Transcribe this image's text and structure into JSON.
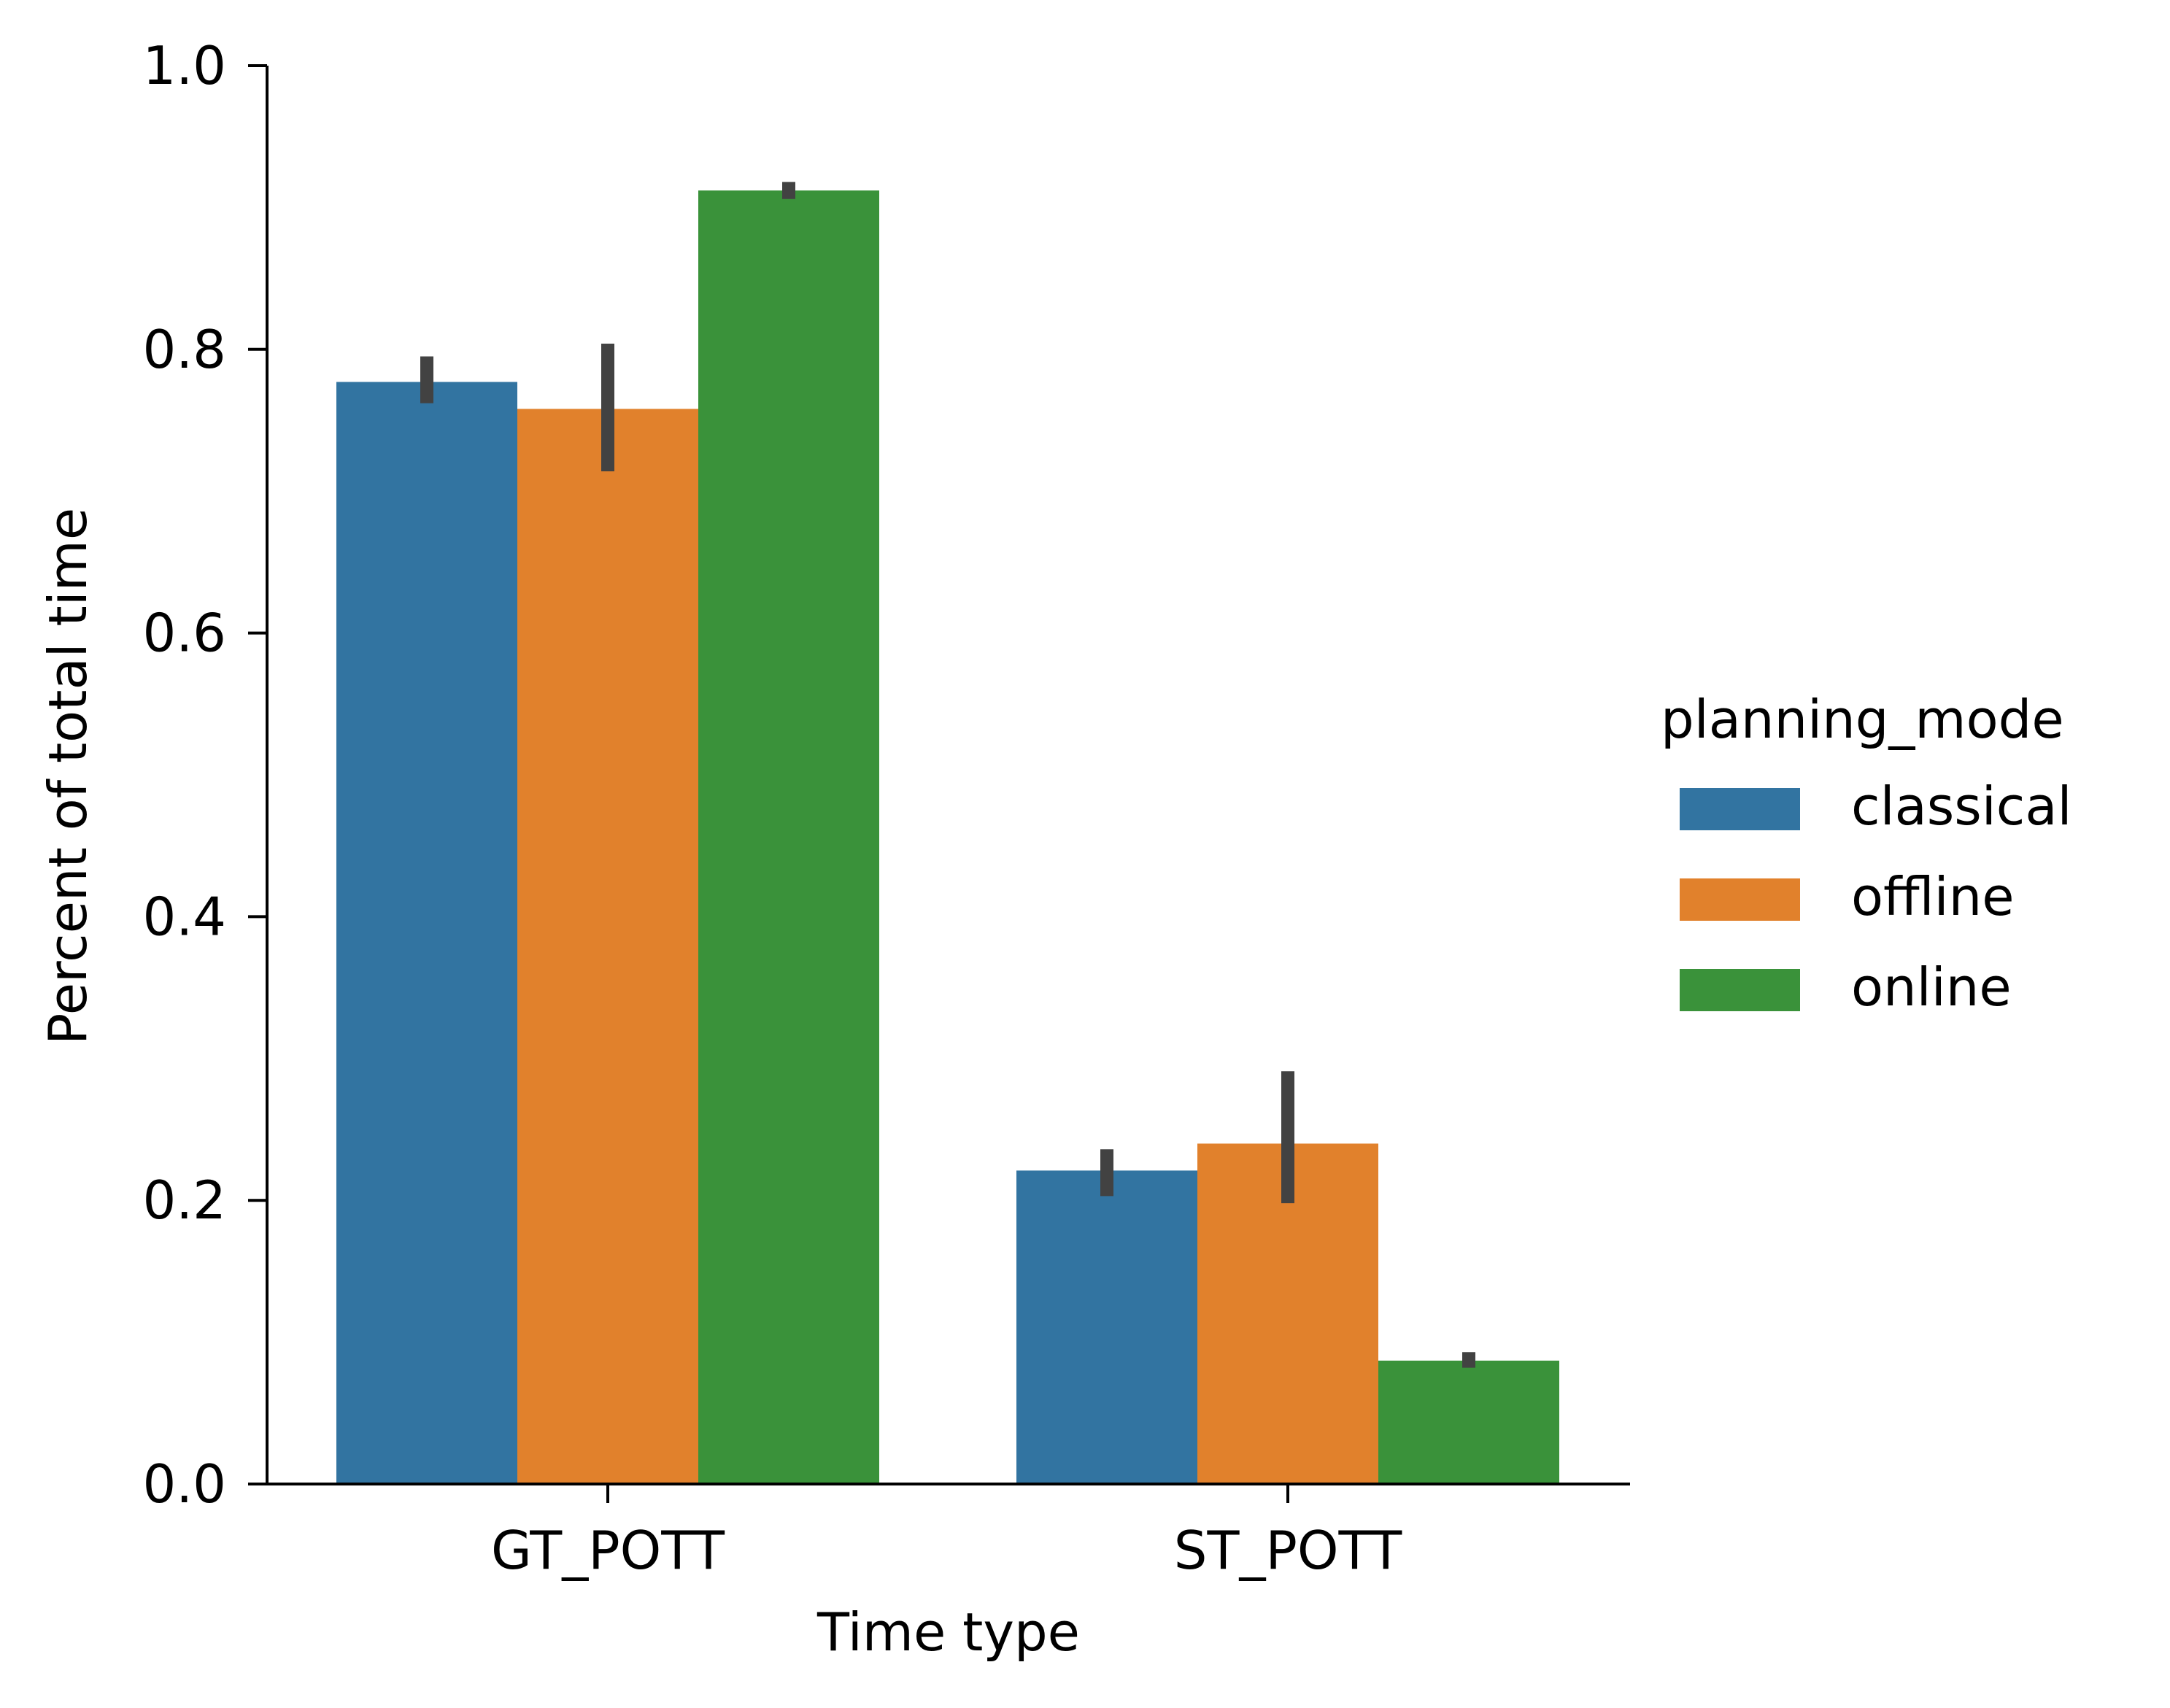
{
  "chart_data": {
    "type": "bar",
    "title": "",
    "xlabel": "Time type",
    "ylabel": "Percent of total time",
    "categories": [
      "GT_POTT",
      "ST_POTT"
    ],
    "ylim": [
      0,
      1.0
    ],
    "yticks": [
      "0.0",
      "0.2",
      "0.4",
      "0.6",
      "0.8",
      "1.0"
    ],
    "grid": false,
    "legend": {
      "title": "planning_mode",
      "placement": "right"
    },
    "series": [
      {
        "name": "classical",
        "color": "#3274a1",
        "values": [
          0.777,
          0.221
        ],
        "error_low": [
          0.762,
          0.203
        ],
        "error_high": [
          0.795,
          0.236
        ]
      },
      {
        "name": "offline",
        "color": "#e1812c",
        "values": [
          0.758,
          0.24
        ],
        "error_low": [
          0.714,
          0.198
        ],
        "error_high": [
          0.804,
          0.291
        ]
      },
      {
        "name": "online",
        "color": "#3a923a",
        "values": [
          0.912,
          0.087
        ],
        "error_low": [
          0.906,
          0.082
        ],
        "error_high": [
          0.918,
          0.093
        ]
      }
    ],
    "errorbar_color": "#424242"
  }
}
